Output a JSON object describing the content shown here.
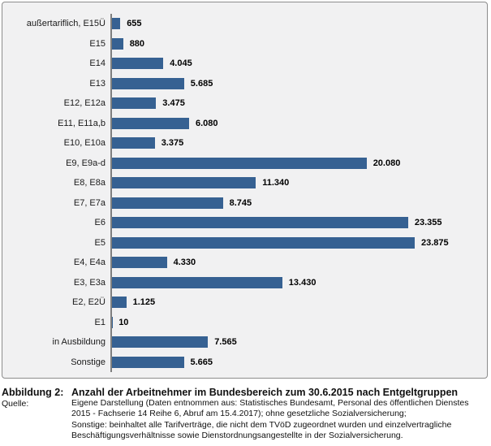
{
  "figure": {
    "caption_label": "Abbildung 2:",
    "caption_title": "Anzahl der Arbeitnehmer im Bundesbereich zum 30.6.2015 nach Entgeltgruppen",
    "source_label": "Quelle:",
    "source_text": "Eigene Darstellung (Daten entnommen aus: Statistisches Bundesamt, Personal des öffentlichen Dienstes\n2015 - Fachserie 14 Reihe 6, Abruf am 15.4.2017);  ohne gesetzliche Sozialversicherung;\nSonstige: beinhaltet alle Tarifverträge, die nicht dem TVöD zugeordnet wurden und einzelvertragliche\nBeschäftigungsverhältnisse sowie Dienstordnungsangestellte in der Sozialversicherung."
  },
  "colors": {
    "bar": "#366192",
    "chart_background": "#F1F1F2",
    "chart_border": "#8C8C8C",
    "axis_line": "#7F7F7F",
    "text": "#111111"
  },
  "chart_data": {
    "type": "bar",
    "orientation": "horizontal",
    "title": "",
    "xlabel": "",
    "ylabel": "",
    "grid": false,
    "legend": false,
    "data_labels": true,
    "xlim": [
      0,
      25000
    ],
    "bar_color": "#366192",
    "categories": [
      "außertariflich, E15Ü",
      "E15",
      "E14",
      "E13",
      "E12, E12a",
      "E11, E11a,b",
      "E10, E10a",
      "E9, E9a-d",
      "E8, E8a",
      "E7, E7a",
      "E6",
      "E5",
      "E4, E4a",
      "E3, E3a",
      "E2, E2Ü",
      "E1",
      "in Ausbildung",
      "Sonstige"
    ],
    "values": [
      655,
      880,
      4045,
      5685,
      3475,
      6080,
      3375,
      20080,
      11340,
      8745,
      23355,
      23875,
      4330,
      13430,
      1125,
      10,
      7565,
      5665
    ],
    "display_values": [
      "655",
      "880",
      "4.045",
      "5.685",
      "3.475",
      "6.080",
      "3.375",
      "20.080",
      "11.340",
      "8.745",
      "23.355",
      "23.875",
      "4.330",
      "13.430",
      "1.125",
      "10",
      "7.565",
      "5.665"
    ]
  }
}
